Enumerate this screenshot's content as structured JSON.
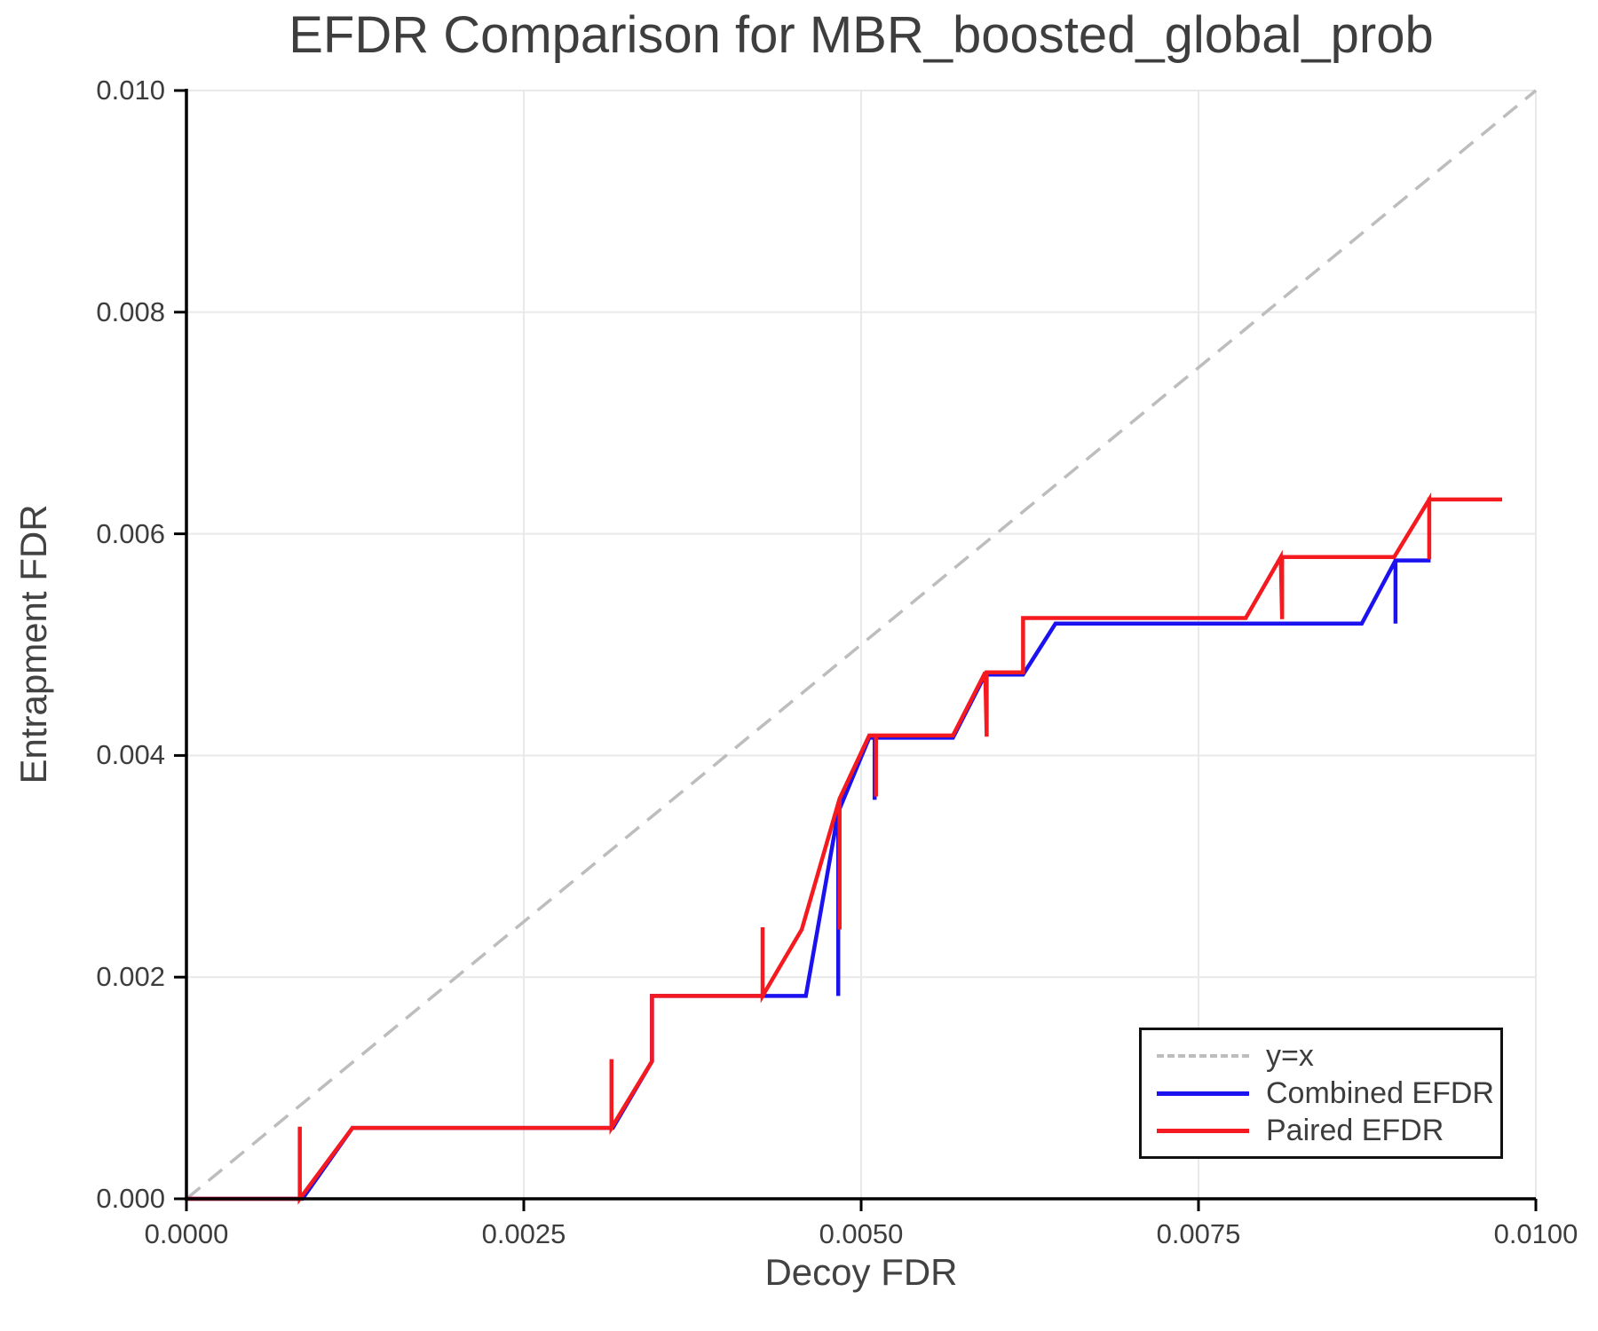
{
  "chart_data": {
    "type": "line",
    "title": "EFDR Comparison for MBR_boosted_global_prob",
    "xlabel": "Decoy FDR",
    "ylabel": "Entrapment FDR",
    "xlim": [
      0.0,
      0.01
    ],
    "ylim": [
      0.0,
      0.01
    ],
    "grid": true,
    "grid_color": "#e9e9e9",
    "spine_color": "#000000",
    "tick_label_color": "#3d3d3d",
    "legend_position": "lower right",
    "x_ticks": {
      "values": [
        0.0,
        0.0025,
        0.005,
        0.0075,
        0.01
      ],
      "labels": [
        "0.0000",
        "0.0025",
        "0.0050",
        "0.0075",
        "0.0100"
      ]
    },
    "y_ticks": {
      "values": [
        0.0,
        0.002,
        0.004,
        0.006,
        0.008,
        0.01
      ],
      "labels": [
        "0.000",
        "0.002",
        "0.004",
        "0.006",
        "0.008",
        "0.010"
      ]
    },
    "series": [
      {
        "name": "y=x",
        "color": "#BDBDBD",
        "style": "dashed",
        "points": [
          [
            0.0,
            0.0
          ],
          [
            0.01,
            0.01
          ]
        ]
      },
      {
        "name": "Combined EFDR",
        "color": "#1B12EF",
        "style": "solid",
        "points": [
          [
            0.0,
            0.0
          ],
          [
            0.00086,
            0.0
          ],
          [
            0.00123,
            0.00064
          ],
          [
            0.00316,
            0.00064
          ],
          [
            0.00345,
            0.00124
          ],
          [
            0.00345,
            0.00183
          ],
          [
            0.00459,
            0.00183
          ],
          [
            0.00483,
            0.00349
          ],
          [
            0.00483,
            0.00183
          ],
          [
            0.00483,
            0.00349
          ],
          [
            0.00506,
            0.00416
          ],
          [
            0.0051,
            0.00416
          ],
          [
            0.0051,
            0.0036
          ],
          [
            0.0051,
            0.00416
          ],
          [
            0.00568,
            0.00416
          ],
          [
            0.00592,
            0.00473
          ],
          [
            0.0062,
            0.00473
          ],
          [
            0.00644,
            0.00519
          ],
          [
            0.00871,
            0.00519
          ],
          [
            0.00896,
            0.00576
          ],
          [
            0.00896,
            0.00519
          ],
          [
            0.00896,
            0.00576
          ],
          [
            0.00922,
            0.00576
          ]
        ]
      },
      {
        "name": "Paired EFDR",
        "color": "#F41A1F",
        "style": "solid",
        "points": [
          [
            0.0,
            0.0
          ],
          [
            0.00084,
            0.0
          ],
          [
            0.00084,
            0.00065
          ],
          [
            0.00084,
            0.0
          ],
          [
            0.00123,
            0.00064
          ],
          [
            0.00315,
            0.00064
          ],
          [
            0.00315,
            0.00126
          ],
          [
            0.00315,
            0.00064
          ],
          [
            0.00345,
            0.00124
          ],
          [
            0.00345,
            0.00183
          ],
          [
            0.00427,
            0.00183
          ],
          [
            0.00427,
            0.00245
          ],
          [
            0.00427,
            0.00183
          ],
          [
            0.00456,
            0.00243
          ],
          [
            0.00484,
            0.00361
          ],
          [
            0.00484,
            0.00243
          ],
          [
            0.00484,
            0.00361
          ],
          [
            0.00506,
            0.00418
          ],
          [
            0.00511,
            0.00418
          ],
          [
            0.00511,
            0.00363
          ],
          [
            0.00511,
            0.00418
          ],
          [
            0.00568,
            0.00418
          ],
          [
            0.00592,
            0.00475
          ],
          [
            0.00593,
            0.00417
          ],
          [
            0.00593,
            0.00475
          ],
          [
            0.0062,
            0.00475
          ],
          [
            0.0062,
            0.00524
          ],
          [
            0.00785,
            0.00524
          ],
          [
            0.00811,
            0.00579
          ],
          [
            0.00812,
            0.00523
          ],
          [
            0.00812,
            0.00579
          ],
          [
            0.00895,
            0.00579
          ],
          [
            0.00921,
            0.00631
          ],
          [
            0.00921,
            0.00577
          ],
          [
            0.00921,
            0.00631
          ],
          [
            0.00975,
            0.00631
          ]
        ]
      }
    ]
  }
}
